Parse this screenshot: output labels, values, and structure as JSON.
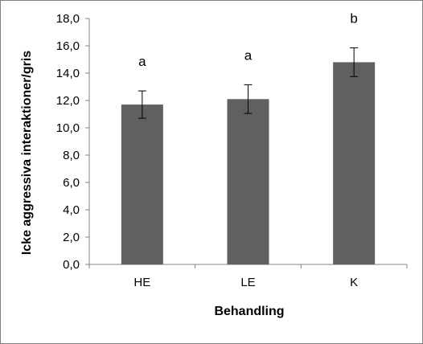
{
  "chart_data": {
    "type": "bar",
    "categories": [
      "HE",
      "LE",
      "K"
    ],
    "values": [
      11.7,
      12.1,
      14.8
    ],
    "error": [
      1.0,
      1.05,
      1.05
    ],
    "significance": [
      "a",
      "a",
      "b"
    ],
    "xlabel": "Behandling",
    "ylabel": "Icke aggressiva interaktioner/gris",
    "ylim": [
      0,
      18
    ],
    "yticks": [
      "0,0",
      "2,0",
      "4,0",
      "6,0",
      "8,0",
      "10,0",
      "12,0",
      "14,0",
      "16,0",
      "18,0"
    ],
    "grid": false,
    "legend": "none",
    "colors": {
      "bar": "#606060",
      "axis": "#808080",
      "frame": "#7f7f7f"
    }
  }
}
